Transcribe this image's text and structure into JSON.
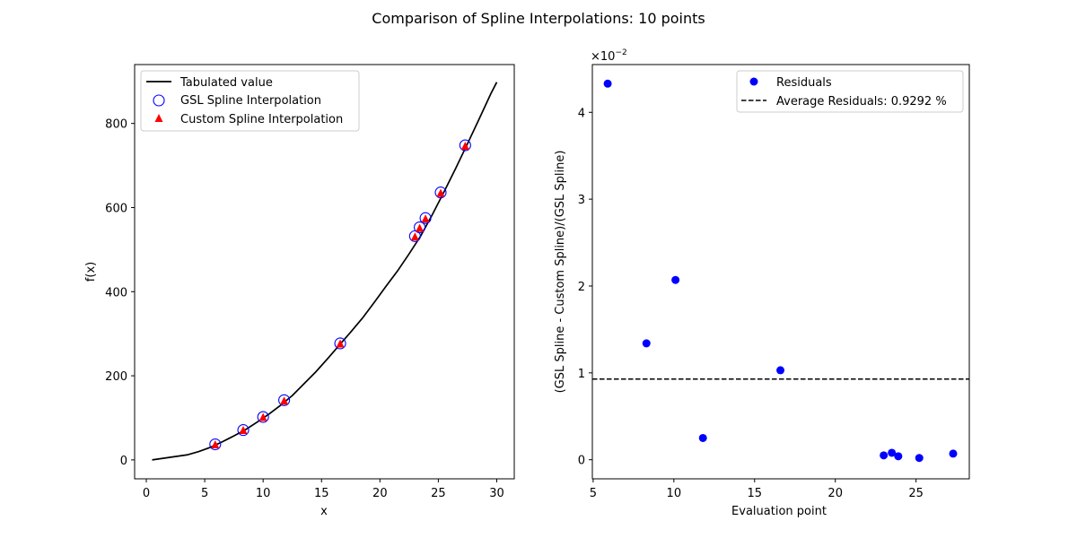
{
  "figure": {
    "title": "Comparison of Spline Interpolations: 10 points"
  },
  "chart_data": [
    {
      "type": "line",
      "xlabel": "x",
      "ylabel": "f(x)",
      "xlim": [
        -1.0,
        31.5
      ],
      "ylim": [
        -45,
        940
      ],
      "xticks": [
        0,
        5,
        10,
        15,
        20,
        25,
        30
      ],
      "yticks": [
        0,
        200,
        400,
        600,
        800
      ],
      "grid": false,
      "legend_position": "upper-left",
      "series": [
        {
          "name": "Tabulated value",
          "kind": "line",
          "color": "#000000",
          "x": [
            0.5,
            1.5,
            2.5,
            3.5,
            4.5,
            5.5,
            6.5,
            7.5,
            8.5,
            9.5,
            10.5,
            11.5,
            12.5,
            13.5,
            14.5,
            15.5,
            16.5,
            17.5,
            18.5,
            19.5,
            20.5,
            21.5,
            22.5,
            23.5,
            24.5,
            25.5,
            26.5,
            27.5,
            28.5,
            29.5,
            30.0
          ],
          "y": [
            0,
            4,
            8,
            12,
            20,
            30,
            43,
            57,
            72,
            90,
            109,
            130,
            153,
            181,
            209,
            240,
            272,
            304,
            337,
            374,
            412,
            449,
            490,
            533,
            584,
            638,
            694,
            752,
            811,
            871,
            898
          ]
        },
        {
          "name": "GSL Spline Interpolation",
          "kind": "scatter",
          "marker": "open-circle",
          "color": "#0000ff",
          "x": [
            5.9,
            8.3,
            10.0,
            11.8,
            16.6,
            23.0,
            23.4,
            23.9,
            25.2,
            27.3
          ],
          "y": [
            37,
            71,
            102,
            142,
            277,
            532,
            553,
            575,
            636,
            748
          ]
        },
        {
          "name": "Custom Spline Interpolation",
          "kind": "scatter",
          "marker": "triangle",
          "color": "#ff0000",
          "x": [
            5.9,
            8.3,
            10.0,
            11.8,
            16.6,
            23.0,
            23.4,
            23.9,
            25.2,
            27.3
          ],
          "y": [
            36,
            70,
            101,
            140,
            276,
            530,
            551,
            573,
            634,
            746
          ]
        }
      ]
    },
    {
      "type": "scatter",
      "xlabel": "Evaluation point",
      "ylabel": "(GSL Spline -  Custom Spline)/(GSL Spline)",
      "offset_label": "×10",
      "offset_exponent": "−2",
      "xlim": [
        4.95,
        28.3
      ],
      "ylim": [
        -0.0022,
        0.0455
      ],
      "xticks": [
        5,
        10,
        15,
        20,
        25
      ],
      "yticks": [
        0,
        0.01,
        0.02,
        0.03,
        0.04
      ],
      "ytick_labels": [
        "0",
        "1",
        "2",
        "3",
        "4"
      ],
      "grid": false,
      "legend_position": "upper-right",
      "series": [
        {
          "name": "Residuals",
          "kind": "scatter",
          "marker": "filled-circle",
          "color": "#0000ff",
          "x": [
            5.9,
            8.3,
            10.1,
            11.8,
            16.6,
            23.0,
            23.5,
            23.9,
            25.2,
            27.3
          ],
          "y": [
            0.0433,
            0.0134,
            0.0207,
            0.0025,
            0.0103,
            0.0005,
            0.0008,
            0.0004,
            0.0002,
            0.0007
          ]
        },
        {
          "name": "Average Residuals: 0.9292 %",
          "kind": "hline",
          "style": "dashed",
          "color": "#000000",
          "y": 0.009292
        }
      ]
    }
  ]
}
